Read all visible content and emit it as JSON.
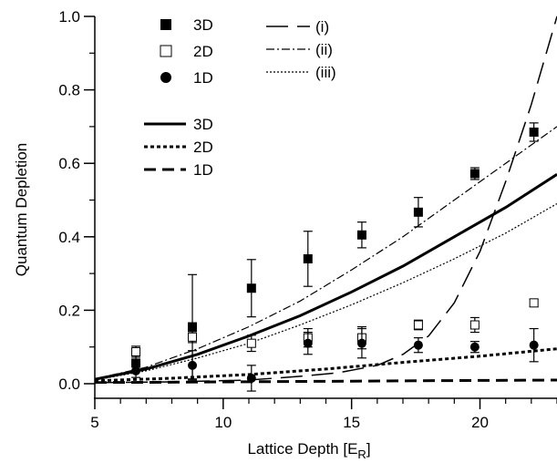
{
  "chart_data": {
    "type": "scatter",
    "xlabel": "Lattice Depth [E",
    "xlabel_sub": "R",
    "xlabel_close": "]",
    "ylabel": "Quantum Depletion",
    "xlim": [
      5,
      23
    ],
    "ylim": [
      0,
      1.0
    ],
    "xticks": [
      5,
      10,
      15,
      20
    ],
    "yticks": [
      0.0,
      0.2,
      0.4,
      0.6,
      0.8,
      1.0
    ],
    "xtick_labels": [
      "5",
      "10",
      "15",
      "20"
    ],
    "ytick_labels": [
      "0.0",
      "0.2",
      "0.4",
      "0.6",
      "0.8",
      "1.0"
    ],
    "grid": false,
    "markers": [
      {
        "name": "3D",
        "marker": "filled-square",
        "points": [
          {
            "x": 6.6,
            "y": 0.056,
            "err": 0.02
          },
          {
            "x": 8.8,
            "y": 0.155,
            "err": 0.142
          },
          {
            "x": 11.1,
            "y": 0.26,
            "err": 0.078
          },
          {
            "x": 13.3,
            "y": 0.34,
            "err": 0.075
          },
          {
            "x": 15.4,
            "y": 0.405,
            "err": 0.035
          },
          {
            "x": 17.6,
            "y": 0.467,
            "err": 0.04
          },
          {
            "x": 19.8,
            "y": 0.572,
            "err": 0.016
          },
          {
            "x": 22.1,
            "y": 0.685,
            "err": 0.025
          }
        ]
      },
      {
        "name": "2D",
        "marker": "open-square",
        "points": [
          {
            "x": 6.6,
            "y": 0.087,
            "err": 0.015
          },
          {
            "x": 8.8,
            "y": 0.127,
            "err": 0.015
          },
          {
            "x": 11.1,
            "y": 0.11,
            "err": 0.022
          },
          {
            "x": 13.3,
            "y": 0.125,
            "err": 0.025
          },
          {
            "x": 15.4,
            "y": 0.125,
            "err": 0.03
          },
          {
            "x": 17.6,
            "y": 0.16,
            "err": 0.013
          },
          {
            "x": 19.8,
            "y": 0.16,
            "err": 0.02
          },
          {
            "x": 22.1,
            "y": 0.22,
            "err": 0.01
          }
        ]
      },
      {
        "name": "1D",
        "marker": "filled-circle",
        "points": [
          {
            "x": 6.6,
            "y": 0.035,
            "err": 0.018
          },
          {
            "x": 8.8,
            "y": 0.05,
            "err": 0.04
          },
          {
            "x": 11.1,
            "y": 0.015,
            "err": 0.035
          },
          {
            "x": 13.3,
            "y": 0.11,
            "err": 0.03
          },
          {
            "x": 15.4,
            "y": 0.11,
            "err": 0.04
          },
          {
            "x": 17.6,
            "y": 0.105,
            "err": 0.02
          },
          {
            "x": 19.8,
            "y": 0.1,
            "err": 0.015
          },
          {
            "x": 22.1,
            "y": 0.105,
            "err": 0.045
          }
        ]
      }
    ],
    "lines": [
      {
        "name": "3D",
        "dash": "solid",
        "width": 3,
        "x": [
          5,
          7,
          9,
          11,
          13,
          15,
          17,
          19,
          21,
          23
        ],
        "y": [
          0.012,
          0.04,
          0.08,
          0.13,
          0.185,
          0.25,
          0.32,
          0.4,
          0.48,
          0.57
        ]
      },
      {
        "name": "2D",
        "dash": "dotted-thick",
        "width": 3,
        "x": [
          5,
          8,
          11,
          14,
          17,
          20,
          23
        ],
        "y": [
          0.008,
          0.015,
          0.025,
          0.04,
          0.058,
          0.075,
          0.095
        ]
      },
      {
        "name": "1D",
        "dash": "dashed-thick",
        "width": 3,
        "x": [
          5,
          10,
          15,
          20,
          23
        ],
        "y": [
          0.003,
          0.005,
          0.007,
          0.009,
          0.01
        ]
      },
      {
        "name": "(i)",
        "dash": "long-dash",
        "width": 1.5,
        "x": [
          5,
          8,
          11,
          13,
          14.5,
          16,
          17,
          18,
          19,
          20,
          21,
          22,
          23
        ],
        "y": [
          0.003,
          0.005,
          0.01,
          0.02,
          0.03,
          0.05,
          0.08,
          0.13,
          0.22,
          0.36,
          0.55,
          0.76,
          1.0
        ]
      },
      {
        "name": "(ii)",
        "dash": "dash-dot",
        "width": 1.2,
        "x": [
          5,
          7,
          9,
          11,
          13,
          15,
          17,
          19,
          21,
          23
        ],
        "y": [
          0.013,
          0.045,
          0.095,
          0.155,
          0.225,
          0.31,
          0.4,
          0.5,
          0.6,
          0.7
        ]
      },
      {
        "name": "(iii)",
        "dash": "dotted-thin",
        "width": 1.2,
        "x": [
          5,
          7,
          9,
          11,
          13,
          15,
          17,
          19,
          21,
          23
        ],
        "y": [
          0.01,
          0.035,
          0.07,
          0.11,
          0.16,
          0.215,
          0.275,
          0.34,
          0.41,
          0.49
        ]
      }
    ],
    "legend_markers": [
      "3D",
      "2D",
      "1D"
    ],
    "legend_lines": [
      "3D",
      "2D",
      "1D"
    ],
    "legend_theory": [
      "(i)",
      "(ii)",
      "(iii)"
    ]
  }
}
